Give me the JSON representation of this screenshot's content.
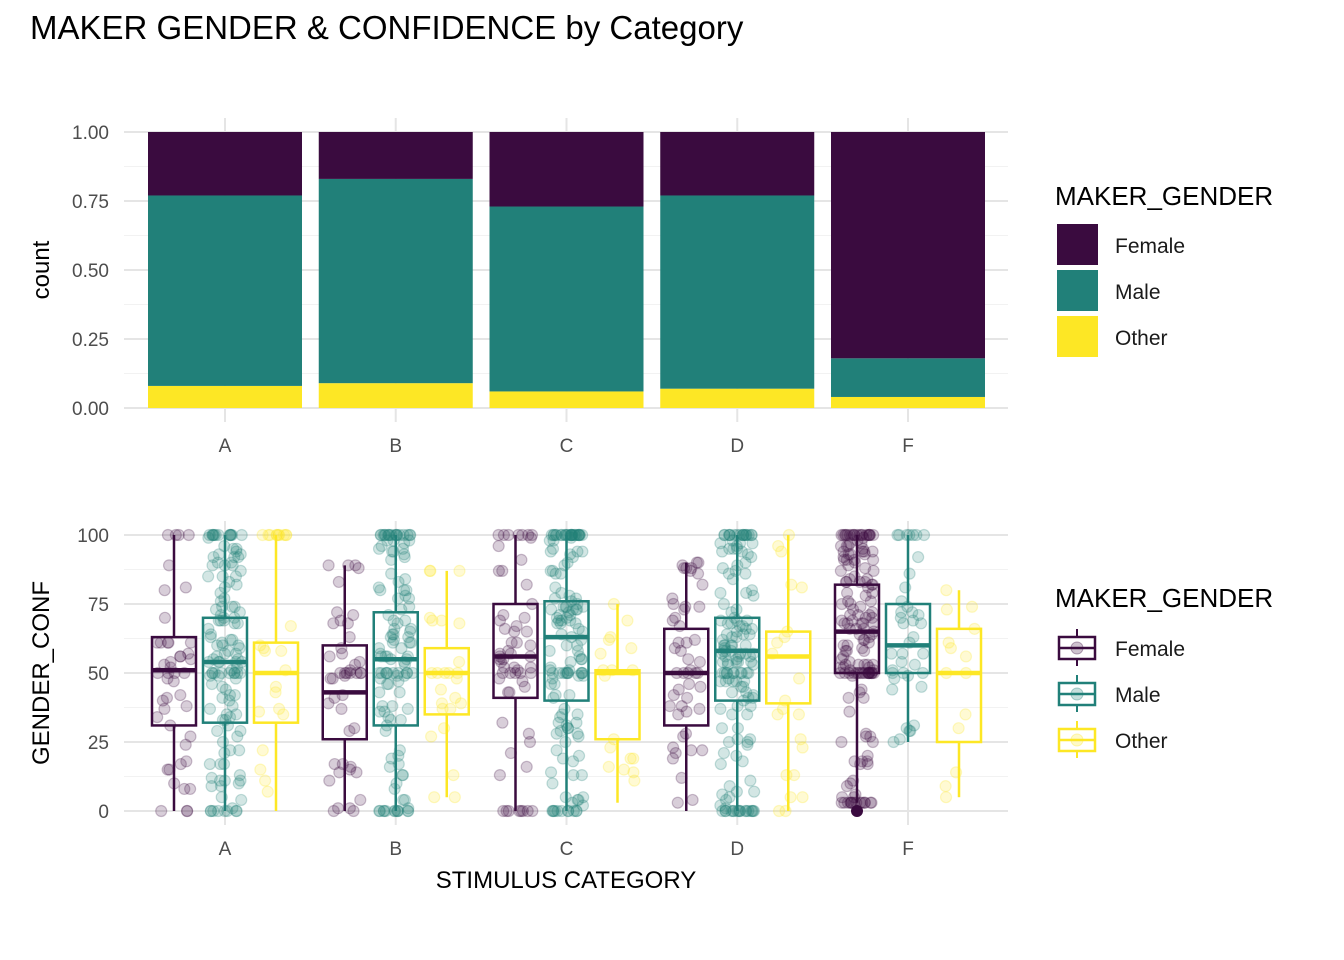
{
  "title": "MAKER GENDER & CONFIDENCE by Category",
  "colors": {
    "Female": "#3a0b3f",
    "Male": "#218079",
    "Other": "#fde725",
    "grid_major": "#e5e5e5",
    "grid_minor": "#f2f2f2"
  },
  "chart_data": [
    {
      "type": "bar",
      "stacked": true,
      "normalized": true,
      "categories": [
        "A",
        "B",
        "C",
        "D",
        "F"
      ],
      "series": [
        {
          "name": "Female",
          "values": [
            0.23,
            0.17,
            0.27,
            0.23,
            0.82
          ]
        },
        {
          "name": "Male",
          "values": [
            0.69,
            0.74,
            0.67,
            0.7,
            0.14
          ]
        },
        {
          "name": "Other",
          "values": [
            0.08,
            0.09,
            0.06,
            0.07,
            0.04
          ]
        }
      ],
      "ylabel": "count",
      "xlabel": "",
      "ylim": [
        0,
        1
      ],
      "yticks": [
        "0.00",
        "0.25",
        "0.50",
        "0.75",
        "1.00"
      ],
      "grid": true,
      "legend": {
        "title": "MAKER_GENDER",
        "position": "right",
        "entries": [
          "Female",
          "Male",
          "Other"
        ]
      }
    },
    {
      "type": "box",
      "categories": [
        "A",
        "B",
        "C",
        "D",
        "F"
      ],
      "groups": [
        "Female",
        "Male",
        "Other"
      ],
      "boxes": {
        "A": {
          "Female": {
            "whisker_low": 0,
            "q1": 31,
            "median": 51,
            "q3": 63,
            "whisker_high": 100
          },
          "Male": {
            "whisker_low": 0,
            "q1": 32,
            "median": 54,
            "q3": 70,
            "whisker_high": 100
          },
          "Other": {
            "whisker_low": 0,
            "q1": 32,
            "median": 50,
            "q3": 61,
            "whisker_high": 100
          }
        },
        "B": {
          "Female": {
            "whisker_low": 0,
            "q1": 26,
            "median": 43,
            "q3": 60,
            "whisker_high": 89
          },
          "Male": {
            "whisker_low": 0,
            "q1": 31,
            "median": 55,
            "q3": 72,
            "whisker_high": 100
          },
          "Other": {
            "whisker_low": 5,
            "q1": 35,
            "median": 50,
            "q3": 59,
            "whisker_high": 87
          }
        },
        "C": {
          "Female": {
            "whisker_low": 0,
            "q1": 41,
            "median": 56,
            "q3": 75,
            "whisker_high": 100
          },
          "Male": {
            "whisker_low": 0,
            "q1": 40,
            "median": 63,
            "q3": 76,
            "whisker_high": 100
          },
          "Other": {
            "whisker_low": 3,
            "q1": 26,
            "median": 50,
            "q3": 51,
            "whisker_high": 75
          }
        },
        "D": {
          "Female": {
            "whisker_low": 0,
            "q1": 31,
            "median": 50,
            "q3": 66,
            "whisker_high": 90
          },
          "Male": {
            "whisker_low": 0,
            "q1": 40,
            "median": 58,
            "q3": 70,
            "whisker_high": 100
          },
          "Other": {
            "whisker_low": 0,
            "q1": 39,
            "median": 56,
            "q3": 65,
            "whisker_high": 100
          }
        },
        "F": {
          "Female": {
            "whisker_low": 3,
            "q1": 50,
            "median": 65,
            "q3": 82,
            "whisker_high": 100,
            "outliers": [
              0
            ]
          },
          "Male": {
            "whisker_low": 25,
            "q1": 50,
            "median": 60,
            "q3": 75,
            "whisker_high": 100
          },
          "Other": {
            "whisker_low": 5,
            "q1": 25,
            "median": 50,
            "q3": 66,
            "whisker_high": 80
          }
        }
      },
      "ylabel": "GENDER_CONF",
      "xlabel": "STIMULUS CATEGORY",
      "ylim": [
        0,
        100
      ],
      "yticks": [
        "0",
        "25",
        "50",
        "75",
        "100"
      ],
      "jitter_points": true,
      "grid": true,
      "legend": {
        "title": "MAKER_GENDER",
        "position": "right",
        "entries": [
          "Female",
          "Male",
          "Other"
        ]
      }
    }
  ]
}
